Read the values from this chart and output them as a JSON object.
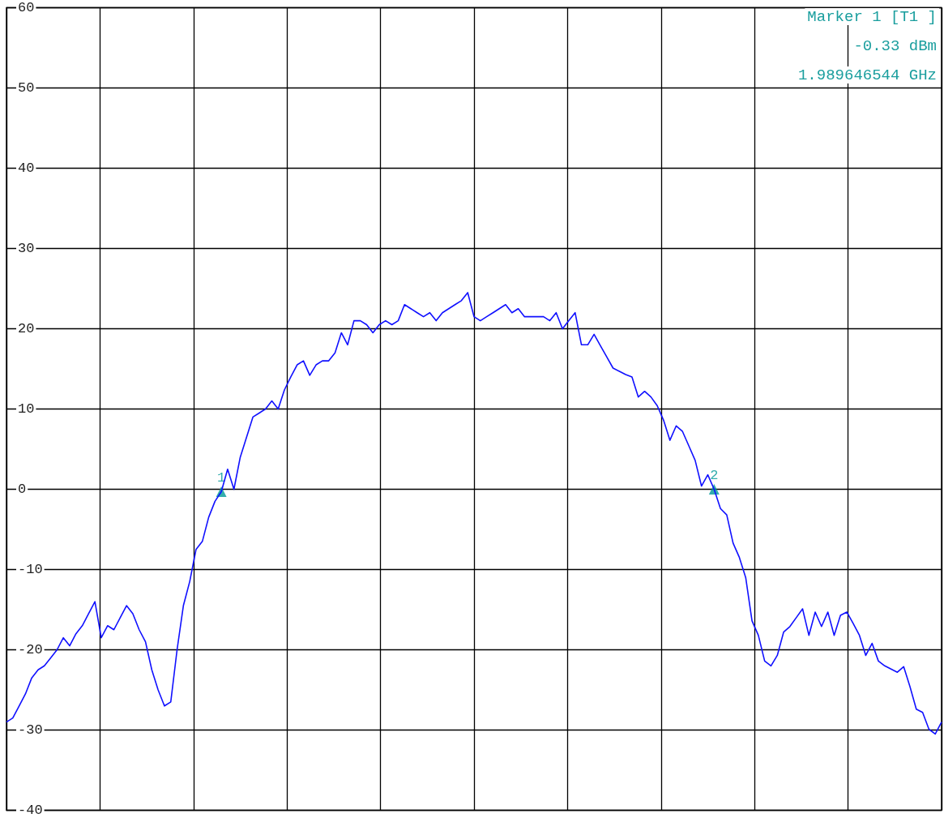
{
  "chart_data": {
    "type": "line",
    "annotations": [
      "Marker 1 [T1 ]",
      "-0.33 dBm",
      "1.989646544 GHz"
    ],
    "categories": [
      null,
      null,
      null,
      null,
      null,
      null,
      null,
      null,
      null,
      null,
      null,
      null,
      null,
      null,
      null,
      null,
      null,
      null,
      null,
      null,
      null,
      null,
      null,
      null,
      null,
      null,
      null,
      null,
      null,
      null,
      null,
      null,
      null,
      null,
      null,
      null,
      null,
      null,
      null,
      null,
      null,
      null,
      null,
      null,
      null,
      null,
      null,
      null,
      null,
      null,
      null,
      null,
      null,
      null,
      null,
      null,
      null,
      null,
      null,
      null,
      null,
      null,
      null,
      null,
      null,
      null,
      null,
      null,
      null,
      null,
      null,
      null,
      null,
      null,
      null,
      null,
      null,
      null,
      null,
      null,
      null,
      null,
      null,
      null,
      null,
      null,
      null,
      null,
      null,
      null,
      null,
      null,
      null,
      null,
      null,
      null,
      null,
      null,
      null,
      null,
      null,
      null,
      null,
      null,
      null,
      null,
      null,
      null,
      null,
      null,
      null,
      null,
      null,
      null,
      null,
      null,
      null,
      null,
      null,
      null,
      null,
      null,
      null,
      null,
      null,
      null,
      null,
      null,
      null,
      null,
      null,
      null,
      null,
      null,
      null,
      null,
      null,
      null,
      null,
      null,
      null,
      null,
      null,
      null,
      null,
      null,
      null,
      null,
      null
    ],
    "series": [
      {
        "color": "#1010ff",
        "marker": "none",
        "values": [
          -29,
          -28.5,
          -27,
          -25.5,
          -23.5,
          -22.5,
          -22,
          -21,
          -20,
          -18.5,
          -19.5,
          -18,
          -17,
          -15.5,
          -14,
          -18.5,
          -17,
          -17.5,
          -16,
          -14.5,
          -15.5,
          -17.5,
          -19,
          -22.5,
          -25,
          -27,
          -26.5,
          -20,
          -14.5,
          -11.5,
          -7.5,
          -6.5,
          -3.5,
          -1.5,
          -0.3,
          2.5,
          0,
          4,
          6.5,
          9,
          9.5,
          10,
          11,
          10,
          12.4,
          14,
          15.5,
          16,
          14.2,
          15.5,
          16,
          16,
          17,
          19.5,
          18,
          21,
          21,
          20.5,
          19.5,
          20.5,
          21,
          20.5,
          21,
          23,
          22.5,
          22,
          21.5,
          22,
          21,
          22,
          22.5,
          23,
          23.5,
          24.5,
          21.5,
          21,
          21.5,
          22,
          22.5,
          23,
          22,
          22.5,
          21.5,
          21.5,
          21.5,
          21.5,
          21,
          22,
          20,
          21,
          22,
          18,
          18,
          19.3,
          17.9,
          16.5,
          15.1,
          14.7,
          14.3,
          14,
          11.5,
          12.2,
          11.5,
          10.4,
          8.6,
          6.1,
          7.9,
          7.2,
          5.4,
          3.6,
          0.4,
          1.8,
          0,
          -2.4,
          -3.2,
          -6.7,
          -8.5,
          -11,
          -16.4,
          -18.2,
          -21.4,
          -22,
          -20.7,
          -17.8,
          -17.1,
          -16,
          -14.9,
          -18.2,
          -15.3,
          -17.1,
          -15.3,
          -18.2,
          -15.7,
          -15.3,
          -16.7,
          -18.2,
          -20.7,
          -19.2,
          -21.4,
          -22,
          -22.4,
          -22.8,
          -22.1,
          -24.6,
          -27.4,
          -27.8,
          -29.9,
          -30.5,
          -29
        ]
      },
      {
        "type": "scatter",
        "name": "1",
        "color": "#009999",
        "marker": "triangle",
        "values": [
          null,
          null,
          null,
          null,
          null,
          null,
          null,
          null,
          null,
          null,
          null,
          null,
          null,
          null,
          null,
          null,
          null,
          null,
          null,
          null,
          null,
          null,
          null,
          null,
          null,
          null,
          null,
          null,
          null,
          null,
          null,
          null,
          null,
          null,
          -0.3,
          null,
          null,
          null,
          null,
          null,
          null,
          null,
          null,
          null,
          null,
          null,
          null,
          null,
          null,
          null,
          null,
          null,
          null,
          null,
          null,
          null,
          null,
          null,
          null,
          null,
          null,
          null,
          null,
          null,
          null,
          null,
          null,
          null,
          null,
          null,
          null,
          null,
          null,
          null,
          null,
          null,
          null,
          null,
          null,
          null,
          null,
          null,
          null,
          null,
          null,
          null,
          null,
          null,
          null,
          null,
          null,
          null,
          null,
          null,
          null,
          null,
          null,
          null,
          null,
          null,
          null,
          null,
          null,
          null,
          null,
          null,
          null,
          null,
          null,
          null,
          null,
          null,
          null,
          null,
          null,
          null,
          null,
          null,
          null,
          null,
          null,
          null,
          null,
          null,
          null,
          null,
          null,
          null,
          null,
          null,
          null,
          null,
          null,
          null,
          null,
          null,
          null,
          null,
          null,
          null,
          null,
          null,
          null,
          null,
          null,
          null,
          null,
          null,
          null
        ]
      },
      {
        "type": "scatter",
        "name": "2",
        "color": "#009999",
        "marker": "triangle",
        "values": [
          null,
          null,
          null,
          null,
          null,
          null,
          null,
          null,
          null,
          null,
          null,
          null,
          null,
          null,
          null,
          null,
          null,
          null,
          null,
          null,
          null,
          null,
          null,
          null,
          null,
          null,
          null,
          null,
          null,
          null,
          null,
          null,
          null,
          null,
          null,
          null,
          null,
          null,
          null,
          null,
          null,
          null,
          null,
          null,
          null,
          null,
          null,
          null,
          null,
          null,
          null,
          null,
          null,
          null,
          null,
          null,
          null,
          null,
          null,
          null,
          null,
          null,
          null,
          null,
          null,
          null,
          null,
          null,
          null,
          null,
          null,
          null,
          null,
          null,
          null,
          null,
          null,
          null,
          null,
          null,
          null,
          null,
          null,
          null,
          null,
          null,
          null,
          null,
          null,
          null,
          null,
          null,
          null,
          null,
          null,
          null,
          null,
          null,
          null,
          null,
          null,
          null,
          null,
          null,
          null,
          null,
          null,
          null,
          null,
          null,
          null,
          null,
          0,
          null,
          null,
          null,
          null,
          null,
          null,
          null,
          null,
          null,
          null,
          null,
          null,
          null,
          null,
          null,
          null,
          null,
          null,
          null,
          null,
          null,
          null,
          null,
          null,
          null,
          null,
          null,
          null,
          null,
          null,
          null,
          null,
          null,
          null,
          null,
          null
        ]
      }
    ],
    "ylim": [
      -40,
      60
    ],
    "yticks": [
      -40,
      -30,
      -20,
      -10,
      0,
      10,
      20,
      30,
      40,
      50,
      60
    ],
    "grid": true,
    "tick_labels": "y"
  }
}
